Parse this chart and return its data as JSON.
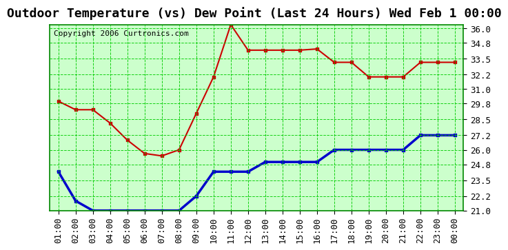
{
  "title": "Outdoor Temperature (vs) Dew Point (Last 24 Hours) Wed Feb 1 00:00",
  "copyright": "Copyright 2006 Curtronics.com",
  "x_labels": [
    "01:00",
    "02:00",
    "03:00",
    "04:00",
    "05:00",
    "06:00",
    "07:00",
    "08:00",
    "09:00",
    "10:00",
    "11:00",
    "12:00",
    "13:00",
    "14:00",
    "15:00",
    "16:00",
    "17:00",
    "18:00",
    "19:00",
    "20:00",
    "21:00",
    "22:00",
    "23:00",
    "00:00"
  ],
  "temp_values": [
    30.0,
    29.3,
    29.3,
    28.2,
    26.8,
    25.7,
    25.5,
    26.0,
    29.0,
    32.0,
    36.3,
    34.2,
    34.2,
    34.2,
    34.2,
    34.3,
    33.2,
    33.2,
    32.0,
    32.0,
    32.0,
    33.2,
    33.2,
    33.2
  ],
  "dew_values": [
    24.2,
    21.8,
    21.0,
    21.0,
    21.0,
    21.0,
    21.0,
    21.0,
    22.2,
    24.2,
    24.2,
    24.2,
    25.0,
    25.0,
    25.0,
    25.0,
    26.0,
    26.0,
    26.0,
    26.0,
    26.0,
    27.2,
    27.2,
    27.2
  ],
  "temp_color": "#cc0000",
  "dew_color": "#0000cc",
  "bg_color": "#ccffcc",
  "grid_color": "#00cc00",
  "border_color": "#008800",
  "ylim_min": 21.0,
  "ylim_max": 36.0,
  "ytick_interval": 1.3,
  "title_fontsize": 13,
  "axis_fontsize": 9,
  "copyright_fontsize": 8
}
